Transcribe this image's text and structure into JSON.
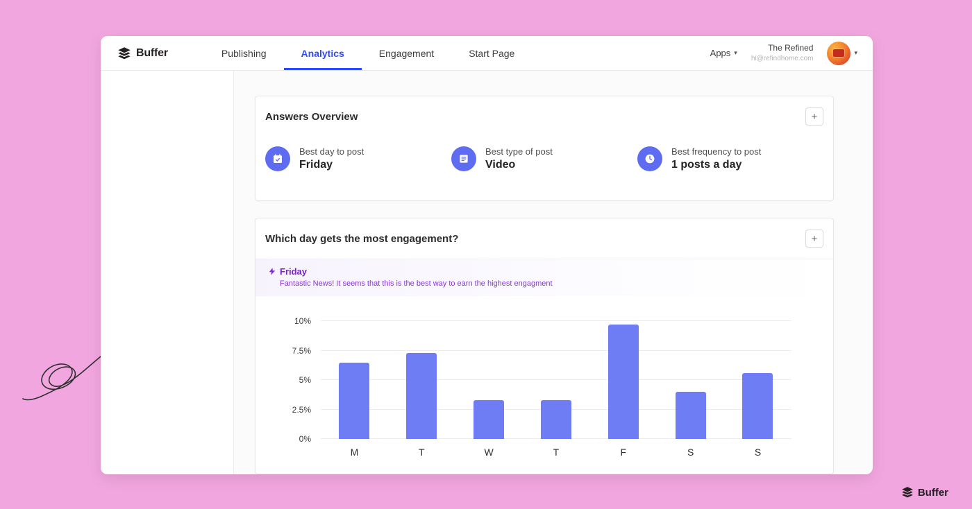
{
  "navbar": {
    "logo_text": "Buffer",
    "tabs": [
      {
        "label": "Publishing",
        "active": false
      },
      {
        "label": "Analytics",
        "active": true
      },
      {
        "label": "Engagement",
        "active": false
      },
      {
        "label": "Start Page",
        "active": false
      }
    ],
    "apps_label": "Apps",
    "account_name": "The Refined",
    "account_email": "hi@refindhome.com"
  },
  "icons": {
    "chevron_down": "▾"
  },
  "cards": {
    "answers": {
      "title": "Answers Overview",
      "add_label": "+",
      "metrics": [
        {
          "icon": "calendar-check-icon",
          "label": "Best day to post",
          "value": "Friday"
        },
        {
          "icon": "post-type-icon",
          "label": "Best type of post",
          "value": "Video"
        },
        {
          "icon": "clock-icon",
          "label": "Best frequency to post",
          "value": "1 posts a day"
        }
      ]
    },
    "engagement": {
      "title": "Which day gets the most engagement?",
      "add_label": "+",
      "insight_icon": "lightning-icon",
      "insight_title": "Friday",
      "insight_text": "Fantastic News! It seems that this is the best way to earn the highest engagment"
    }
  },
  "chart_data": {
    "type": "bar",
    "title": "Which day gets the most engagement?",
    "categories": [
      "M",
      "T",
      "W",
      "T",
      "F",
      "S",
      "S"
    ],
    "values": [
      6.5,
      7.3,
      3.3,
      3.3,
      9.7,
      4.0,
      5.6
    ],
    "unit": "%",
    "y_ticks": [
      "10%",
      "7.5%",
      "5%",
      "2.5%",
      "0%"
    ],
    "ylim": [
      0,
      10
    ],
    "grid": true,
    "legend": false,
    "bar_color": "#6f7df5"
  },
  "footer_logo_text": "Buffer",
  "colors": {
    "page_background": "#f2a6df",
    "accent_blue": "#2c4bff",
    "bar_color": "#6f7df5",
    "metric_icon_circle": "#5e6cf2",
    "insight_purple": "#7b1fd1"
  }
}
